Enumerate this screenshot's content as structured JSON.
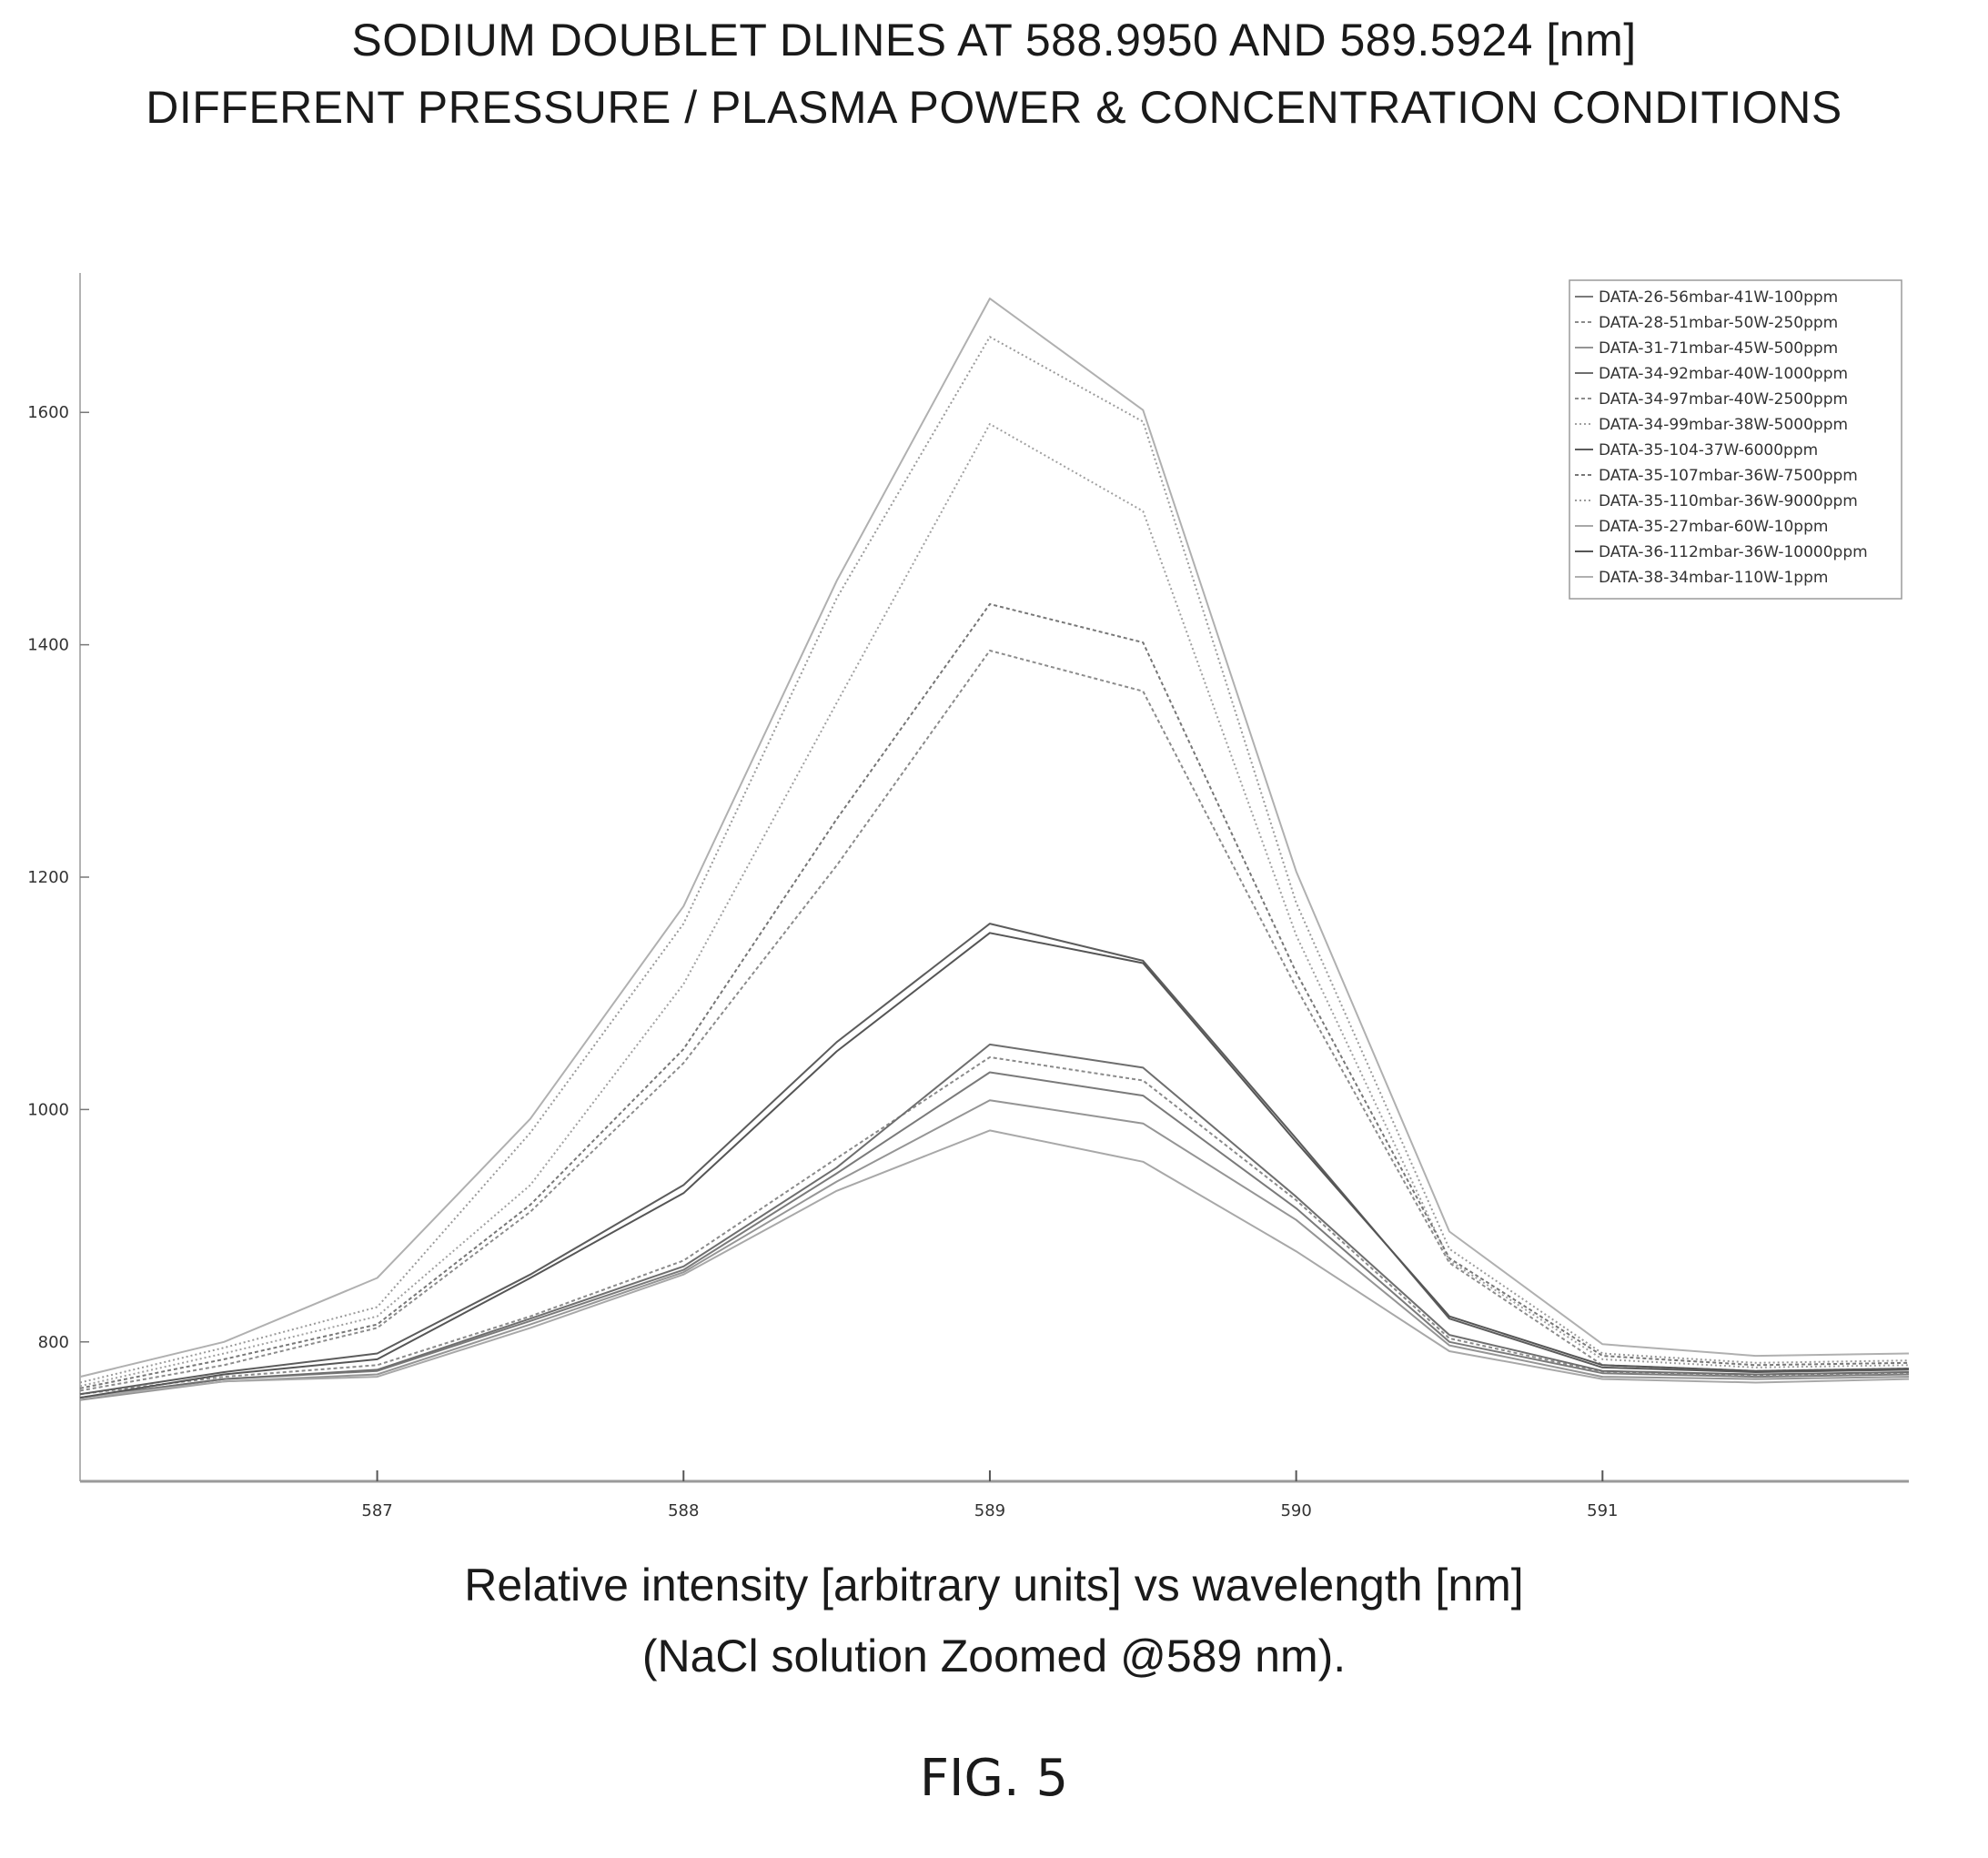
{
  "figure_label": "FIG. 5",
  "chart_data": {
    "type": "line",
    "title": "SODIUM DOUBLET DLINES AT 588.9950 AND 589.5924 [nm]",
    "subtitle": "DIFFERENT PRESSURE / PLASMA POWER & CONCENTRATION CONDITIONS",
    "xlabel": "Relative intensity [arbitrary units] vs wavelength [nm]",
    "xlabel_note": "(NaCl solution Zoomed @589 nm).",
    "ylabel": "",
    "xlim": [
      586.03,
      592.0
    ],
    "ylim": [
      680,
      1720
    ],
    "x_ticks": [
      587,
      588,
      589,
      590,
      591
    ],
    "y_ticks": [
      800,
      1000,
      1200,
      1400,
      1600
    ],
    "grid": false,
    "legend_position": "top-right",
    "x": [
      586.03,
      586.5,
      587,
      587.5,
      588,
      588.5,
      589,
      589.5,
      590,
      590.5,
      591,
      591.5,
      592
    ],
    "series": [
      {
        "name": "DATA-26-56mbar-41W-100ppm",
        "color": "#7a7a7a",
        "dash": "",
        "values": [
          752,
          768,
          775,
          818,
          862,
          945,
          1032,
          1012,
          915,
          800,
          773,
          770,
          772
        ]
      },
      {
        "name": "DATA-28-51mbar-50W-250ppm",
        "color": "#8a8a8a",
        "dash": "4,3",
        "values": [
          755,
          770,
          780,
          822,
          870,
          958,
          1045,
          1025,
          922,
          803,
          774,
          771,
          773
        ]
      },
      {
        "name": "DATA-31-71mbar-45W-500ppm",
        "color": "#959595",
        "dash": "",
        "values": [
          750,
          766,
          772,
          815,
          860,
          938,
          1008,
          988,
          905,
          797,
          770,
          768,
          770
        ]
      },
      {
        "name": "DATA-34-92mbar-40W-1000ppm",
        "color": "#6e6e6e",
        "dash": "",
        "values": [
          752,
          768,
          776,
          820,
          865,
          950,
          1056,
          1036,
          925,
          806,
          775,
          772,
          774
        ]
      },
      {
        "name": "DATA-34-97mbar-40W-2500ppm",
        "color": "#8c8c8c",
        "dash": "4,3",
        "values": [
          758,
          780,
          812,
          912,
          1040,
          1210,
          1395,
          1360,
          1105,
          868,
          780,
          775,
          777
        ]
      },
      {
        "name": "DATA-34-99mbar-38W-5000ppm",
        "color": "#a0a0a0",
        "dash": "2,3",
        "values": [
          762,
          790,
          822,
          935,
          1108,
          1350,
          1590,
          1515,
          1150,
          870,
          785,
          778,
          780
        ]
      },
      {
        "name": "DATA-35-104-37W-6000ppm",
        "color": "#5c5c5c",
        "dash": "",
        "values": [
          755,
          774,
          790,
          858,
          935,
          1058,
          1160,
          1128,
          975,
          820,
          778,
          774,
          776
        ]
      },
      {
        "name": "DATA-35-107mbar-36W-7500ppm",
        "color": "#777777",
        "dash": "4,3",
        "values": [
          760,
          785,
          815,
          918,
          1052,
          1250,
          1435,
          1402,
          1118,
          872,
          788,
          780,
          782
        ]
      },
      {
        "name": "DATA-35-110mbar-36W-9000ppm",
        "color": "#9a9a9a",
        "dash": "2,3",
        "values": [
          765,
          795,
          830,
          980,
          1160,
          1440,
          1665,
          1592,
          1178,
          880,
          790,
          782,
          784
        ]
      },
      {
        "name": "DATA-35-27mbar-60W-10ppm",
        "color": "#a8a8a8",
        "dash": "",
        "values": [
          752,
          766,
          770,
          812,
          858,
          930,
          982,
          955,
          878,
          792,
          768,
          765,
          768
        ]
      },
      {
        "name": "DATA-36-112mbar-36W-10000ppm",
        "color": "#555555",
        "dash": "",
        "values": [
          752,
          772,
          785,
          855,
          928,
          1050,
          1152,
          1126,
          972,
          822,
          780,
          775,
          777
        ]
      },
      {
        "name": "DATA-38-34mbar-110W-1ppm",
        "color": "#b0b0b0",
        "dash": "",
        "values": [
          770,
          800,
          855,
          992,
          1175,
          1455,
          1698,
          1602,
          1205,
          895,
          798,
          788,
          790
        ]
      }
    ]
  }
}
